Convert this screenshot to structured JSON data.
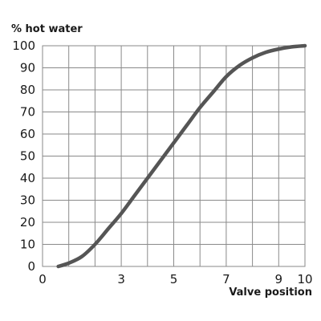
{
  "chart_data": {
    "type": "line",
    "title": "",
    "xlabel": "Valve position",
    "ylabel": "% hot water",
    "xlim": [
      0,
      10
    ],
    "ylim": [
      0,
      100
    ],
    "x_ticks": [
      0,
      1,
      2,
      3,
      4,
      5,
      6,
      7,
      8,
      9,
      10
    ],
    "x_tick_labels": [
      "0",
      "",
      "",
      "3",
      "",
      "5",
      "",
      "7",
      "",
      "9",
      "10"
    ],
    "y_ticks": [
      0,
      10,
      20,
      30,
      40,
      50,
      60,
      70,
      80,
      90,
      100
    ],
    "y_tick_labels": [
      "0",
      "10",
      "20",
      "30",
      "40",
      "50",
      "60",
      "70",
      "80",
      "90",
      "100"
    ],
    "grid": true,
    "legend": "none",
    "line_color": "#555555",
    "series": [
      {
        "values": [
          {
            "x": 0.6,
            "y": 0
          },
          {
            "x": 1.0,
            "y": 1.5
          },
          {
            "x": 1.5,
            "y": 4.5
          },
          {
            "x": 2.0,
            "y": 10
          },
          {
            "x": 2.5,
            "y": 17
          },
          {
            "x": 3.0,
            "y": 24
          },
          {
            "x": 3.5,
            "y": 32
          },
          {
            "x": 4.0,
            "y": 40
          },
          {
            "x": 4.5,
            "y": 48
          },
          {
            "x": 5.0,
            "y": 56
          },
          {
            "x": 5.5,
            "y": 64
          },
          {
            "x": 6.0,
            "y": 72
          },
          {
            "x": 6.5,
            "y": 79
          },
          {
            "x": 7.0,
            "y": 86
          },
          {
            "x": 7.5,
            "y": 91
          },
          {
            "x": 8.0,
            "y": 94.5
          },
          {
            "x": 8.5,
            "y": 97
          },
          {
            "x": 9.0,
            "y": 98.5
          },
          {
            "x": 9.5,
            "y": 99.5
          },
          {
            "x": 10.0,
            "y": 100
          }
        ]
      }
    ]
  }
}
